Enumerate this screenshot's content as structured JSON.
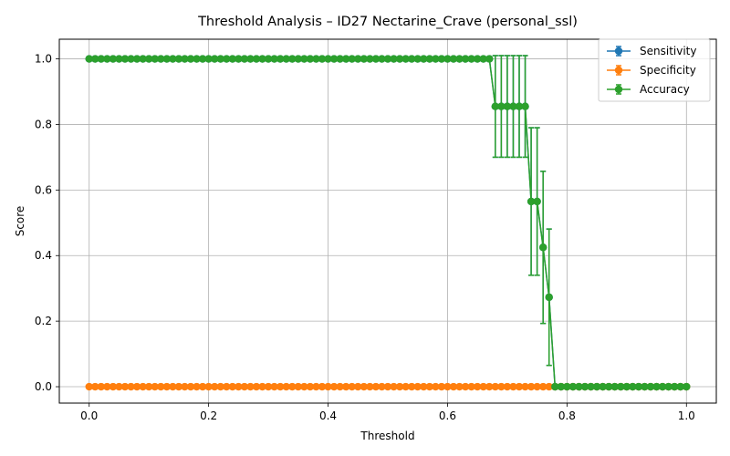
{
  "chart_data": {
    "type": "line",
    "title": "Threshold Analysis – ID27 Nectarine_Crave (personal_ssl)",
    "xlabel": "Threshold",
    "ylabel": "Score",
    "xlim": [
      -0.05,
      1.05
    ],
    "ylim": [
      -0.05,
      1.06
    ],
    "xticks": [
      0.0,
      0.2,
      0.4,
      0.6,
      0.8,
      1.0
    ],
    "xtick_labels": [
      "0.0",
      "0.2",
      "0.4",
      "0.6",
      "0.8",
      "1.0"
    ],
    "yticks": [
      0.0,
      0.2,
      0.4,
      0.6,
      0.8,
      1.0
    ],
    "ytick_labels": [
      "0.0",
      "0.2",
      "0.4",
      "0.6",
      "0.8",
      "1.0"
    ],
    "grid": true,
    "legend_position": "top-right",
    "x_start": 0.0,
    "x_step": 0.01,
    "series": [
      {
        "name": "Sensitivity",
        "color": "#1f77b4",
        "values": [
          1,
          1,
          1,
          1,
          1,
          1,
          1,
          1,
          1,
          1,
          1,
          1,
          1,
          1,
          1,
          1,
          1,
          1,
          1,
          1,
          1,
          1,
          1,
          1,
          1,
          1,
          1,
          1,
          1,
          1,
          1,
          1,
          1,
          1,
          1,
          1,
          1,
          1,
          1,
          1,
          1,
          1,
          1,
          1,
          1,
          1,
          1,
          1,
          1,
          1,
          1,
          1,
          1,
          1,
          1,
          1,
          1,
          1,
          1,
          1,
          1,
          1,
          1,
          1,
          1,
          1,
          1,
          1,
          0.855,
          0.855,
          0.855,
          0.855,
          0.855,
          0.855,
          0.565,
          0.565,
          0.425,
          0.273,
          0,
          0,
          0,
          0,
          0,
          0,
          0,
          0,
          0,
          0,
          0,
          0,
          0,
          0,
          0,
          0,
          0,
          0,
          0,
          0,
          0,
          0,
          0
        ],
        "errors": [
          0,
          0,
          0,
          0,
          0,
          0,
          0,
          0,
          0,
          0,
          0,
          0,
          0,
          0,
          0,
          0,
          0,
          0,
          0,
          0,
          0,
          0,
          0,
          0,
          0,
          0,
          0,
          0,
          0,
          0,
          0,
          0,
          0,
          0,
          0,
          0,
          0,
          0,
          0,
          0,
          0,
          0,
          0,
          0,
          0,
          0,
          0,
          0,
          0,
          0,
          0,
          0,
          0,
          0,
          0,
          0,
          0,
          0,
          0,
          0,
          0,
          0,
          0,
          0,
          0,
          0,
          0,
          0,
          0.155,
          0.155,
          0.155,
          0.155,
          0.155,
          0.155,
          0.225,
          0.225,
          0.232,
          0.208,
          0,
          0,
          0,
          0,
          0,
          0,
          0,
          0,
          0,
          0,
          0,
          0,
          0,
          0,
          0,
          0,
          0,
          0,
          0,
          0,
          0,
          0,
          0
        ]
      },
      {
        "name": "Specificity",
        "color": "#ff7f0e",
        "values": [
          0,
          0,
          0,
          0,
          0,
          0,
          0,
          0,
          0,
          0,
          0,
          0,
          0,
          0,
          0,
          0,
          0,
          0,
          0,
          0,
          0,
          0,
          0,
          0,
          0,
          0,
          0,
          0,
          0,
          0,
          0,
          0,
          0,
          0,
          0,
          0,
          0,
          0,
          0,
          0,
          0,
          0,
          0,
          0,
          0,
          0,
          0,
          0,
          0,
          0,
          0,
          0,
          0,
          0,
          0,
          0,
          0,
          0,
          0,
          0,
          0,
          0,
          0,
          0,
          0,
          0,
          0,
          0,
          0,
          0,
          0,
          0,
          0,
          0,
          0,
          0,
          0,
          0,
          0,
          0,
          0,
          0,
          0,
          0,
          0,
          0,
          0,
          0,
          0,
          0,
          0,
          0,
          0,
          0,
          0,
          0,
          0,
          0,
          0,
          0,
          0
        ],
        "errors": [
          0,
          0,
          0,
          0,
          0,
          0,
          0,
          0,
          0,
          0,
          0,
          0,
          0,
          0,
          0,
          0,
          0,
          0,
          0,
          0,
          0,
          0,
          0,
          0,
          0,
          0,
          0,
          0,
          0,
          0,
          0,
          0,
          0,
          0,
          0,
          0,
          0,
          0,
          0,
          0,
          0,
          0,
          0,
          0,
          0,
          0,
          0,
          0,
          0,
          0,
          0,
          0,
          0,
          0,
          0,
          0,
          0,
          0,
          0,
          0,
          0,
          0,
          0,
          0,
          0,
          0,
          0,
          0,
          0,
          0,
          0,
          0,
          0,
          0,
          0,
          0,
          0,
          0,
          0,
          0,
          0,
          0,
          0,
          0,
          0,
          0,
          0,
          0,
          0,
          0,
          0,
          0,
          0,
          0,
          0,
          0,
          0,
          0,
          0,
          0,
          0
        ]
      },
      {
        "name": "Accuracy",
        "color": "#2ca02c",
        "values": [
          1,
          1,
          1,
          1,
          1,
          1,
          1,
          1,
          1,
          1,
          1,
          1,
          1,
          1,
          1,
          1,
          1,
          1,
          1,
          1,
          1,
          1,
          1,
          1,
          1,
          1,
          1,
          1,
          1,
          1,
          1,
          1,
          1,
          1,
          1,
          1,
          1,
          1,
          1,
          1,
          1,
          1,
          1,
          1,
          1,
          1,
          1,
          1,
          1,
          1,
          1,
          1,
          1,
          1,
          1,
          1,
          1,
          1,
          1,
          1,
          1,
          1,
          1,
          1,
          1,
          1,
          1,
          1,
          0.855,
          0.855,
          0.855,
          0.855,
          0.855,
          0.855,
          0.565,
          0.565,
          0.425,
          0.273,
          0,
          0,
          0,
          0,
          0,
          0,
          0,
          0,
          0,
          0,
          0,
          0,
          0,
          0,
          0,
          0,
          0,
          0,
          0,
          0,
          0,
          0,
          0
        ],
        "errors": [
          0,
          0,
          0,
          0,
          0,
          0,
          0,
          0,
          0,
          0,
          0,
          0,
          0,
          0,
          0,
          0,
          0,
          0,
          0,
          0,
          0,
          0,
          0,
          0,
          0,
          0,
          0,
          0,
          0,
          0,
          0,
          0,
          0,
          0,
          0,
          0,
          0,
          0,
          0,
          0,
          0,
          0,
          0,
          0,
          0,
          0,
          0,
          0,
          0,
          0,
          0,
          0,
          0,
          0,
          0,
          0,
          0,
          0,
          0,
          0,
          0,
          0,
          0,
          0,
          0,
          0,
          0,
          0,
          0.155,
          0.155,
          0.155,
          0.155,
          0.155,
          0.155,
          0.225,
          0.225,
          0.232,
          0.208,
          0,
          0,
          0,
          0,
          0,
          0,
          0,
          0,
          0,
          0,
          0,
          0,
          0,
          0,
          0,
          0,
          0,
          0,
          0,
          0,
          0,
          0,
          0
        ]
      }
    ]
  }
}
